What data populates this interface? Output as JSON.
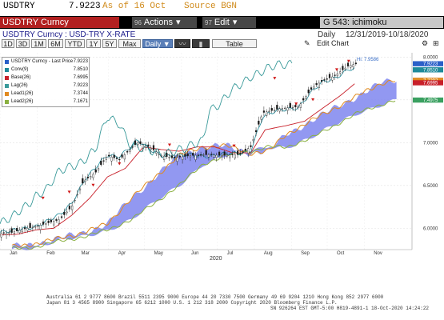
{
  "quote": {
    "ticker": "USDTRY",
    "price": "7.9223",
    "as_of": "As of 16 Oct",
    "source": "Source BGN"
  },
  "command_bar": {
    "security": "USDTRY Curncy",
    "actions_num": "96",
    "actions_label": "Actions",
    "edit_num": "97",
    "edit_label": "Edit",
    "function_label": "G 543: ichimoku"
  },
  "subheader": {
    "title": "USDTRY Curncy : USD-TRY X-RATE",
    "period": "Daily",
    "range": "12/31/2019-10/18/2020"
  },
  "toolbar": {
    "ranges": [
      "1D",
      "3D",
      "1M",
      "6M",
      "YTD",
      "1Y",
      "5Y",
      "Max"
    ],
    "frequency": "Daily",
    "table_label": "Table",
    "edit_chart_label": "Edit Chart"
  },
  "legend": [
    {
      "name": "USDTRY Curncy - Last Price",
      "value": "7.9223",
      "color": "#2a5fc8"
    },
    {
      "name": "Conv(9)",
      "value": "7.8510",
      "color": "#1e8a9a"
    },
    {
      "name": "Base(26)",
      "value": "7.6995",
      "color": "#c8202a"
    },
    {
      "name": "Lag(26)",
      "value": "7.9223",
      "color": "#3a9a9a"
    },
    {
      "name": "Lead1(26)",
      "value": "7.3744",
      "color": "#e08a20"
    },
    {
      "name": "Lead2(26)",
      "value": "7.1671",
      "color": "#8ab040"
    }
  ],
  "chart_data": {
    "type": "line",
    "x_labels": [
      "Jan",
      "Feb",
      "Mar",
      "Apr",
      "May",
      "Jun",
      "Jul",
      "Aug",
      "Sep",
      "Oct",
      "Nov"
    ],
    "year_label": "2020",
    "y_ticks": [
      "6.0000",
      "6.5000",
      "7.0000",
      "7.5000",
      "8.0000"
    ],
    "ylim": [
      5.75,
      8.05
    ],
    "hi_label": "Hi: 7.9586",
    "axis_badges": [
      {
        "value": "7.9223",
        "color": "#2a5fc8"
      },
      {
        "value": "7.8510",
        "color": "#1e8a9a"
      },
      {
        "value": "7.7292",
        "color": "#e08a20"
      },
      {
        "value": "7.6995",
        "color": "#c8202a"
      },
      {
        "value": "7.4975",
        "color": "#3aa060"
      }
    ],
    "series": {
      "price": [
        [
          0,
          5.94
        ],
        [
          10,
          5.95
        ],
        [
          20,
          5.99
        ],
        [
          30,
          6.02
        ],
        [
          40,
          6.06
        ],
        [
          50,
          6.1
        ],
        [
          60,
          6.25
        ],
        [
          70,
          6.55
        ],
        [
          80,
          6.65
        ],
        [
          90,
          6.85
        ],
        [
          100,
          6.8
        ],
        [
          115,
          7.0
        ],
        [
          125,
          6.95
        ],
        [
          135,
          6.85
        ],
        [
          145,
          6.82
        ],
        [
          160,
          6.85
        ],
        [
          175,
          6.86
        ],
        [
          185,
          6.85
        ],
        [
          200,
          6.86
        ],
        [
          210,
          6.95
        ],
        [
          220,
          7.35
        ],
        [
          235,
          7.4
        ],
        [
          250,
          7.42
        ],
        [
          262,
          7.65
        ],
        [
          270,
          7.72
        ],
        [
          280,
          7.78
        ],
        [
          292,
          7.9
        ],
        [
          298,
          7.92
        ]
      ],
      "conv": [
        [
          0,
          5.95
        ],
        [
          10,
          5.96
        ],
        [
          20,
          6.0
        ],
        [
          30,
          6.03
        ],
        [
          40,
          6.08
        ],
        [
          50,
          6.15
        ],
        [
          60,
          6.3
        ],
        [
          70,
          6.55
        ],
        [
          80,
          6.7
        ],
        [
          90,
          6.85
        ],
        [
          100,
          6.85
        ],
        [
          115,
          7.02
        ],
        [
          125,
          6.92
        ],
        [
          135,
          6.86
        ],
        [
          145,
          6.84
        ],
        [
          160,
          6.85
        ],
        [
          175,
          6.85
        ],
        [
          185,
          6.86
        ],
        [
          200,
          6.87
        ],
        [
          210,
          6.92
        ],
        [
          220,
          7.3
        ],
        [
          235,
          7.38
        ],
        [
          250,
          7.42
        ],
        [
          262,
          7.6
        ],
        [
          270,
          7.7
        ],
        [
          280,
          7.76
        ],
        [
          292,
          7.86
        ],
        [
          298,
          7.85
        ]
      ],
      "base": [
        [
          0,
          5.92
        ],
        [
          15,
          5.93
        ],
        [
          30,
          5.98
        ],
        [
          45,
          6.0
        ],
        [
          60,
          6.15
        ],
        [
          75,
          6.35
        ],
        [
          90,
          6.6
        ],
        [
          105,
          6.7
        ],
        [
          120,
          6.95
        ],
        [
          135,
          6.92
        ],
        [
          150,
          6.9
        ],
        [
          165,
          6.95
        ],
        [
          180,
          6.95
        ],
        [
          195,
          6.88
        ],
        [
          210,
          6.88
        ],
        [
          222,
          7.15
        ],
        [
          240,
          7.2
        ],
        [
          255,
          7.25
        ],
        [
          270,
          7.4
        ],
        [
          285,
          7.55
        ],
        [
          298,
          7.7
        ]
      ],
      "lag": [
        [
          0,
          6.05
        ],
        [
          10,
          6.1
        ],
        [
          20,
          6.25
        ],
        [
          30,
          6.4
        ],
        [
          40,
          6.45
        ],
        [
          50,
          6.65
        ],
        [
          60,
          6.75
        ],
        [
          70,
          6.8
        ],
        [
          80,
          6.9
        ],
        [
          90,
          7.3
        ],
        [
          100,
          7.25
        ],
        [
          110,
          6.95
        ],
        [
          120,
          6.9
        ],
        [
          140,
          6.9
        ],
        [
          155,
          6.9
        ],
        [
          170,
          7.05
        ],
        [
          175,
          7.4
        ],
        [
          185,
          7.45
        ],
        [
          195,
          7.6
        ],
        [
          210,
          7.8
        ],
        [
          225,
          7.85
        ],
        [
          235,
          7.9
        ],
        [
          245,
          7.95
        ]
      ],
      "lead1": [
        [
          10,
          5.78
        ],
        [
          30,
          5.82
        ],
        [
          50,
          5.88
        ],
        [
          70,
          5.95
        ],
        [
          90,
          6.05
        ],
        [
          110,
          6.35
        ],
        [
          130,
          6.6
        ],
        [
          150,
          6.85
        ],
        [
          170,
          6.95
        ],
        [
          190,
          6.96
        ],
        [
          210,
          6.88
        ],
        [
          225,
          6.9
        ],
        [
          240,
          7.1
        ],
        [
          260,
          7.25
        ],
        [
          280,
          7.4
        ],
        [
          300,
          7.55
        ],
        [
          320,
          7.7
        ],
        [
          332,
          7.73
        ]
      ],
      "lead2": [
        [
          10,
          5.76
        ],
        [
          30,
          5.78
        ],
        [
          50,
          5.85
        ],
        [
          70,
          5.9
        ],
        [
          90,
          5.98
        ],
        [
          110,
          6.1
        ],
        [
          130,
          6.3
        ],
        [
          150,
          6.5
        ],
        [
          170,
          6.75
        ],
        [
          190,
          6.85
        ],
        [
          210,
          6.9
        ],
        [
          225,
          6.95
        ],
        [
          240,
          6.95
        ],
        [
          260,
          7.05
        ],
        [
          280,
          7.2
        ],
        [
          300,
          7.35
        ],
        [
          320,
          7.45
        ],
        [
          332,
          7.5
        ]
      ]
    }
  },
  "footer": {
    "line1": "Australia 61 2 9777 8600 Brazil 5511 2395 9000 Europe 44 20 7330 7500 Germany 49 69 9204 1210 Hong Kong 852 2977 6000",
    "line2": "Japan 81 3 4565 8900          Singapore 65 6212 1000          U.S. 1 212 318 2000          Copyright 2020 Bloomberg Finance L.P.",
    "line3": "SN 926264 EST  GMT-5:00 H819-4891-1 18-Oct-2020 14:24:22"
  }
}
